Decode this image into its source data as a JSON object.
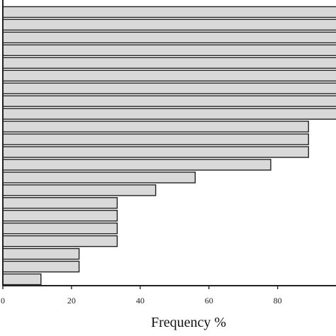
{
  "chart_data": {
    "type": "bar",
    "orientation": "horizontal",
    "title": "",
    "xlabel": "Frequency %",
    "ylabel": "",
    "xlim": [
      0,
      97
    ],
    "xticks": [
      0,
      20,
      40,
      60,
      80
    ],
    "grid": false,
    "bar_color": "#d9d9d9",
    "edge_color": "#222222",
    "values": [
      100,
      100,
      100,
      100,
      100,
      100,
      100,
      100,
      100,
      89,
      89,
      89,
      78,
      56,
      44.5,
      33.3,
      33.3,
      33.3,
      33.3,
      22.2,
      22.2,
      11.1
    ]
  }
}
